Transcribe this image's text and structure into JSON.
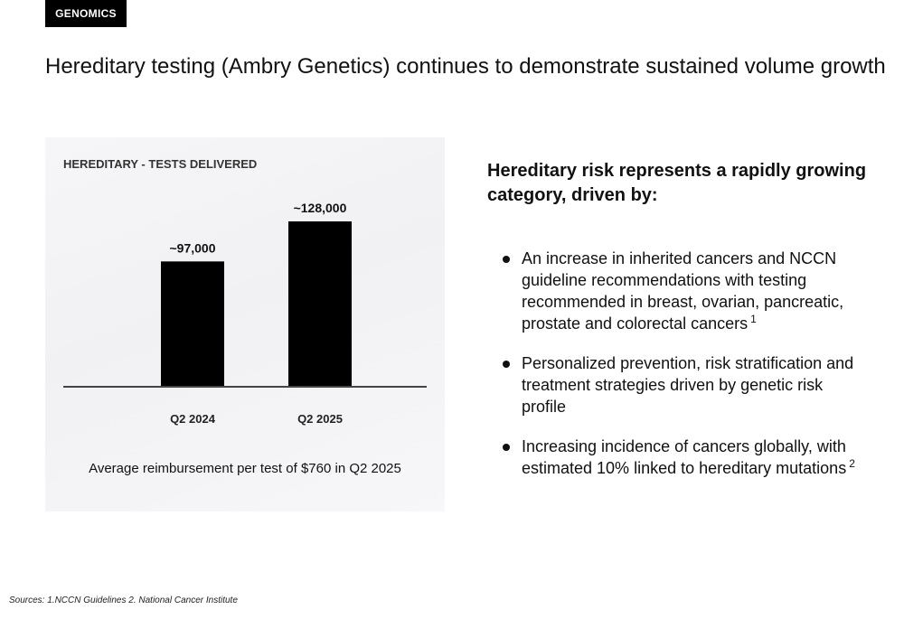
{
  "section_tag": "GENOMICS",
  "page_title": "Hereditary testing (Ambry Genetics) continues to demonstrate sustained volume growth",
  "chart_data": {
    "type": "bar",
    "title": "HEREDITARY - TESTS DELIVERED",
    "categories": [
      "Q2 2024",
      "Q2 2025"
    ],
    "values": [
      97000,
      128000
    ],
    "data_labels": [
      "~97,000",
      "~128,000"
    ],
    "xlabel": "",
    "ylabel": "",
    "grid": false,
    "bar_color": "#000000",
    "note": "Average reimbursement per test of $760 in Q2 2025"
  },
  "right": {
    "heading": "Hereditary risk represents a rapidly growing category, driven by:",
    "bullets": [
      {
        "text": "An increase in inherited cancers and NCCN guideline recommendations with testing recommended in breast, ovarian, pancreatic, prostate and colorectal cancers",
        "footnote": "1"
      },
      {
        "text": "Personalized prevention, risk stratification and treatment strategies driven by genetic risk profile",
        "footnote": ""
      },
      {
        "text": "Increasing incidence of cancers globally, with estimated 10% linked to hereditary mutations",
        "footnote": "2"
      }
    ]
  },
  "sources": "Sources: 1.NCCN Guidelines 2. National Cancer Institute"
}
